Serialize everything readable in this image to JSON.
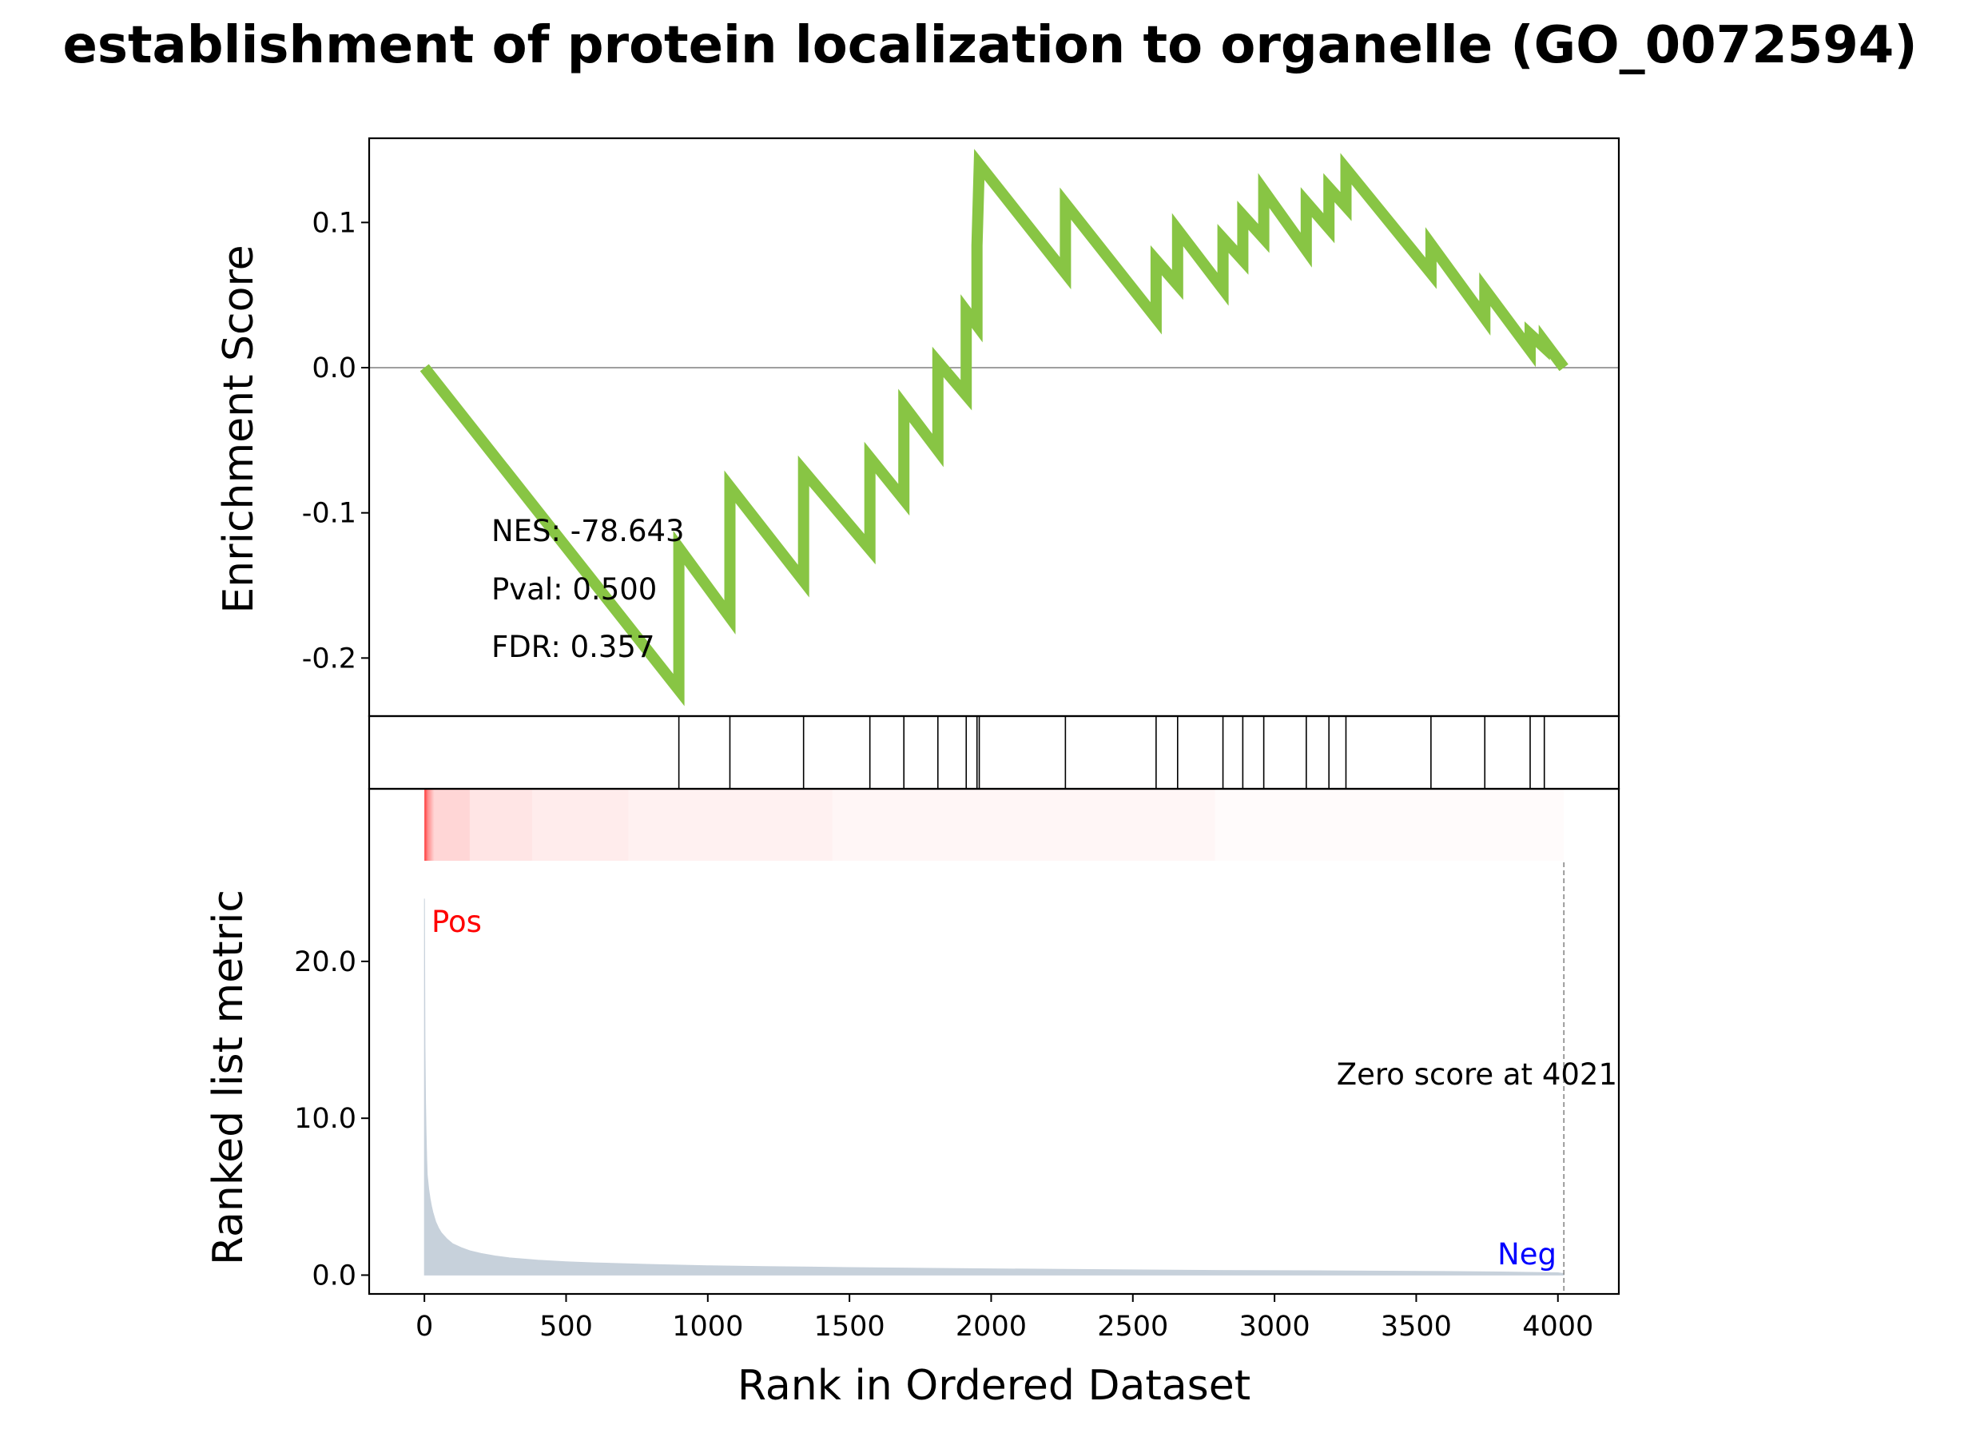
{
  "chart_data": {
    "type": "line",
    "title": "establishment of protein localization to organelle (GO_0072594)",
    "xlabel": "Rank in Ordered Dataset",
    "xlim": [
      -195,
      4215
    ],
    "x_ticks": [
      0,
      500,
      1000,
      1500,
      2000,
      2500,
      3000,
      3500,
      4000
    ],
    "x_tick_labels": [
      "0",
      "500",
      "1000",
      "1500",
      "2000",
      "2500",
      "3000",
      "3500",
      "4000"
    ],
    "colors": {
      "es_line": "#88c544",
      "metric_fill": "#c7d1db",
      "heat_color": "#ff0000",
      "pos_label": "#ff0000",
      "neg_label": "#0000ff",
      "zero_line": "#888888"
    },
    "enrichment_panel": {
      "ylabel": "Enrichment Score",
      "ylim": [
        -0.24,
        0.158
      ],
      "y_ticks": [
        0.1,
        0.0,
        -0.1,
        -0.2
      ],
      "y_tick_labels": [
        "0.1",
        "0.0",
        "-0.1",
        "-0.2"
      ],
      "stats": {
        "nes": "NES: -78.643",
        "pval": "Pval: 0.500",
        "fdr": "FDR: 0.357"
      },
      "series": [
        {
          "x": [
            0,
            898,
            898,
            1078,
            1078,
            1338,
            1338,
            1572,
            1572,
            1692,
            1692,
            1812,
            1812,
            1912,
            1912,
            1950,
            1950,
            1958,
            1958,
            2262,
            2262,
            2582,
            2582,
            2658,
            2658,
            2818,
            2818,
            2888,
            2888,
            2962,
            2962,
            3112,
            3112,
            3192,
            3192,
            3252,
            3252,
            3552,
            3552,
            3742,
            3742,
            3902,
            3902,
            3952,
            3952,
            4021
          ],
          "y": [
            0.0,
            -0.222,
            -0.124,
            -0.172,
            -0.082,
            -0.147,
            -0.071,
            -0.125,
            -0.062,
            -0.091,
            -0.026,
            -0.057,
            0.004,
            -0.019,
            0.039,
            0.029,
            0.084,
            0.14,
            0.14,
            0.065,
            0.113,
            0.034,
            0.074,
            0.057,
            0.095,
            0.054,
            0.089,
            0.074,
            0.105,
            0.089,
            0.122,
            0.081,
            0.114,
            0.096,
            0.124,
            0.111,
            0.137,
            0.065,
            0.085,
            0.034,
            0.054,
            0.012,
            0.023,
            0.014,
            0.018,
            0.0
          ]
        }
      ]
    },
    "hits_panel": {
      "hit_ranks": [
        898,
        1078,
        1338,
        1572,
        1692,
        1812,
        1912,
        1950,
        1958,
        2262,
        2582,
        2658,
        2818,
        2888,
        2962,
        3112,
        3192,
        3252,
        3552,
        3742,
        3902,
        3952
      ]
    },
    "metric_panel": {
      "ylabel": "Ranked list metric",
      "ylim": [
        -1.2,
        31.0
      ],
      "y_ticks": [
        0.0,
        10.0,
        20.0
      ],
      "y_tick_labels": [
        "0.0",
        "10.0",
        "20.0"
      ],
      "pos_label": "Pos",
      "neg_label": "Neg",
      "zero_score_label": "Zero score at 4021",
      "zero_rank": 4021,
      "heatmap_segments": [
        {
          "x0": 0,
          "x1": 35,
          "intensity": 0.6
        },
        {
          "x0": 35,
          "x1": 160,
          "intensity": 0.16
        },
        {
          "x0": 160,
          "x1": 380,
          "intensity": 0.1
        },
        {
          "x0": 380,
          "x1": 720,
          "intensity": 0.075
        },
        {
          "x0": 720,
          "x1": 1440,
          "intensity": 0.055
        },
        {
          "x0": 1440,
          "x1": 2790,
          "intensity": 0.035
        },
        {
          "x0": 2790,
          "x1": 4021,
          "intensity": 0.015
        }
      ],
      "series": [
        {
          "x": [
            0,
            2,
            4,
            6,
            8,
            10,
            15,
            20,
            25,
            30,
            40,
            50,
            60,
            80,
            100,
            130,
            160,
            200,
            250,
            300,
            400,
            500,
            600,
            800,
            1000,
            1200,
            1500,
            1800,
            2000,
            2400,
            2800,
            3200,
            3600,
            3800,
            4000,
            4021
          ],
          "y": [
            24.0,
            14.5,
            11.0,
            9.0,
            7.5,
            6.4,
            5.5,
            4.9,
            4.4,
            4.0,
            3.4,
            3.0,
            2.7,
            2.3,
            2.0,
            1.75,
            1.55,
            1.38,
            1.22,
            1.1,
            0.95,
            0.85,
            0.78,
            0.68,
            0.6,
            0.55,
            0.48,
            0.43,
            0.4,
            0.35,
            0.3,
            0.27,
            0.23,
            0.2,
            0.15,
            0.1
          ]
        }
      ]
    }
  }
}
